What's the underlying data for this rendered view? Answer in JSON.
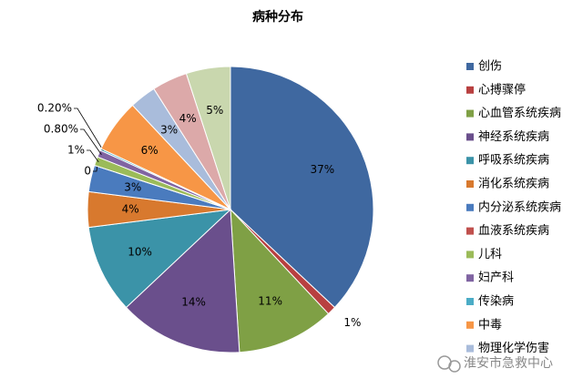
{
  "chart_data": {
    "type": "pie",
    "title": "病种分布",
    "categories": [
      "创伤",
      "心搏骤停",
      "心血管系统疾病",
      "神经系统疾病",
      "呼吸系统疾病",
      "消化系统疾病",
      "内分泌系统疾病",
      "血液系统疾病",
      "儿科",
      "妇产科",
      "传染病",
      "中毒",
      "物理化学伤害",
      null,
      null
    ],
    "values": [
      37,
      1,
      11,
      14,
      10,
      4,
      3,
      0,
      1,
      0.8,
      0.2,
      6,
      3,
      4,
      5
    ],
    "value_labels": [
      "37%",
      "1%",
      "11%",
      "14%",
      "10%",
      "4%",
      "3%",
      "0",
      "1%",
      "0.80%",
      "0.20%",
      "6%",
      "3%",
      "4%",
      "5%"
    ],
    "colors": [
      "#3F68A0",
      "#B84040",
      "#7FA045",
      "#6A4F8C",
      "#3B93A8",
      "#D8792E",
      "#4A7BBE",
      "#C0504D",
      "#9BBB59",
      "#8064A2",
      "#4BACC6",
      "#F79646",
      "#A9BCDB",
      "#DCA9A9",
      "#C9D7AE"
    ],
    "watermark": "淮安市急救中心"
  }
}
